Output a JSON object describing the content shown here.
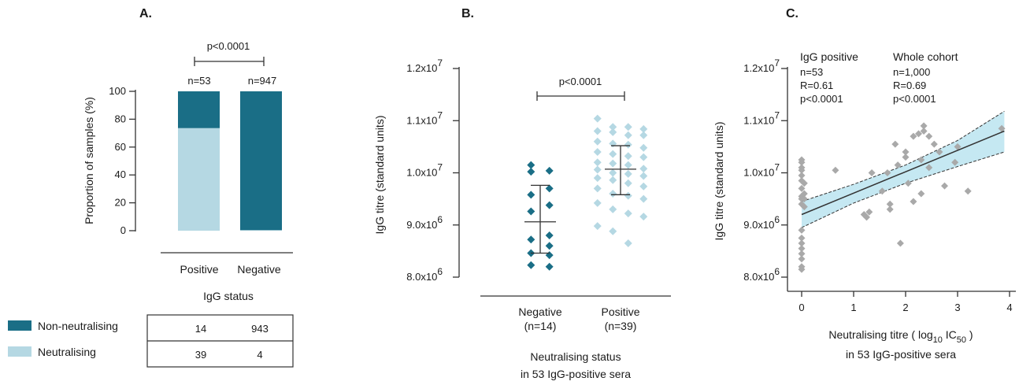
{
  "colors": {
    "non_neutralising": "#1a6e86",
    "neutralising": "#b5d8e3",
    "band": "#c5e8f2",
    "scatter_gray": "#a9a9a9",
    "line": "#333333"
  },
  "panelA": {
    "letter": "A.",
    "pvalue": "p<0.0001",
    "n_positive": "n=53",
    "n_negative": "n=947",
    "legend_non": "Non-neutralising",
    "legend_neu": "Neutralising",
    "table": [
      [
        "14",
        "943"
      ],
      [
        "39",
        "4"
      ]
    ]
  },
  "panelB": {
    "letter": "B.",
    "pvalue": "p<0.0001",
    "neg_line1": "Negative",
    "neg_line2": "(n=14)",
    "pos_line1": "Positive",
    "pos_line2": "(n=39)",
    "xtitle1": "Neutralising status",
    "xtitle2": "in 53 IgG-positive sera"
  },
  "panelC": {
    "letter": "C.",
    "igg_title": "IgG positive",
    "igg_n": "n=53",
    "igg_r": "R=0.61",
    "igg_p": "p<0.0001",
    "whole_title": "Whole cohort",
    "whole_n": "n=1,000",
    "whole_r": "R=0.69",
    "whole_p": "p<0.0001",
    "xtitle_pre": "Neutralising titre ( log",
    "xtitle_sub": "10",
    "xtitle_mid": " IC",
    "xtitle_sub2": "50",
    "xtitle_post": " )",
    "xtitle2": "in 53 IgG-positive sera"
  },
  "chart_data": [
    {
      "type": "bar",
      "stacked": true,
      "title": "A.",
      "xlabel": "IgG status",
      "ylabel": "Proportion of samples (%)",
      "ylim": [
        0,
        100
      ],
      "yticks": [
        0,
        20,
        40,
        60,
        80,
        100
      ],
      "categories": [
        "Positive",
        "Negative"
      ],
      "series": [
        {
          "name": "Neutralising",
          "values": [
            73.6,
            0.4
          ]
        },
        {
          "name": "Non-neutralising",
          "values": [
            26.4,
            99.6
          ]
        }
      ]
    },
    {
      "type": "scatter",
      "title": "B.",
      "xlabel": "Neutralising status",
      "ylabel": "IgG titre (standard units)",
      "ylim": [
        8000000,
        12000000
      ],
      "ytick_values": [
        8000000,
        9000000,
        10000000,
        11000000,
        12000000
      ],
      "ytick_labels": [
        "8.0x10",
        "9.0x10",
        "1.0x10",
        "1.1x10",
        "1.2x10"
      ],
      "ytick_exps": [
        "6",
        "6",
        "7",
        "7",
        "7"
      ],
      "categories": [
        "Negative",
        "Positive"
      ],
      "groups": [
        {
          "category": "Negative",
          "mean": 9060000,
          "sd_low": 8460000,
          "sd_high": 9760000,
          "values": [
            10150000,
            10040000,
            10020000,
            9700000,
            9580000,
            9380000,
            9260000,
            8800000,
            8720000,
            8600000,
            8460000,
            8420000,
            8200000,
            8230000
          ]
        },
        {
          "category": "Positive",
          "mean": 10070000,
          "sd_low": 9580000,
          "sd_high": 10520000,
          "values": [
            10880000,
            10880000,
            11040000,
            10840000,
            10800000,
            10780000,
            10720000,
            10720000,
            10600000,
            10560000,
            10540000,
            10480000,
            10400000,
            10360000,
            10320000,
            10300000,
            10200000,
            10180000,
            10150000,
            10080000,
            10060000,
            10000000,
            9980000,
            9940000,
            9900000,
            9860000,
            9800000,
            9740000,
            9700000,
            9600000,
            9560000,
            9500000,
            9420000,
            9300000,
            9220000,
            9160000,
            8980000,
            8880000,
            8650000
          ]
        }
      ]
    },
    {
      "type": "scatter",
      "title": "C.",
      "xlabel": "Neutralising titre ( log 10 IC 50 )",
      "ylabel": "IgG titre (standard units)",
      "xlim": [
        0,
        4
      ],
      "xticks": [
        0,
        1,
        2,
        3,
        4
      ],
      "ylim": [
        8000000,
        12000000
      ],
      "ytick_values": [
        8000000,
        9000000,
        10000000,
        11000000,
        12000000
      ],
      "ytick_labels": [
        "8.0x10",
        "9.0x10",
        "1.0x10",
        "1.1x10",
        "1.2x10"
      ],
      "ytick_exps": [
        "6",
        "6",
        "7",
        "7",
        "7"
      ],
      "fit": {
        "x": [
          0,
          3.9
        ],
        "y": [
          9200000,
          10800000
        ]
      },
      "ci_upper": {
        "x": [
          0,
          1,
          2,
          3,
          3.9
        ],
        "y": [
          9450000,
          9780000,
          10150000,
          10620000,
          11180000
        ]
      },
      "ci_lower": {
        "x": [
          0,
          1,
          2,
          3,
          3.9
        ],
        "y": [
          8950000,
          9420000,
          9800000,
          10120000,
          10400000
        ]
      },
      "points": {
        "x": [
          0,
          0,
          0,
          0,
          0,
          0,
          0,
          0,
          0,
          0,
          0,
          0,
          0,
          0,
          0,
          0,
          0,
          0,
          0.05,
          0.05,
          0.05,
          0.05,
          0.65,
          1.35,
          1.8,
          2.0,
          2.15,
          2.25,
          2.35,
          2.45,
          2.55,
          2.3,
          2.0,
          1.85,
          1.65,
          1.55,
          1.3,
          1.25,
          1.2,
          1.7,
          1.7,
          2.05,
          2.15,
          2.3,
          2.45,
          2.65,
          2.75,
          2.95,
          3.0,
          3.2,
          3.85,
          1.9,
          2.35
        ],
        "y": [
          10100000,
          10050000,
          9950000,
          9850000,
          9700000,
          9550000,
          9500000,
          9400000,
          8900000,
          8750000,
          8650000,
          8550000,
          8450000,
          8350000,
          8200000,
          8150000,
          10250000,
          10200000,
          9800000,
          9600000,
          9500000,
          9350000,
          10050000,
          10000000,
          10550000,
          10400000,
          10700000,
          10750000,
          10800000,
          10700000,
          10550000,
          10250000,
          10300000,
          10150000,
          10000000,
          9650000,
          9250000,
          9150000,
          9200000,
          9400000,
          9300000,
          9800000,
          9450000,
          9600000,
          10100000,
          10400000,
          9750000,
          10200000,
          10500000,
          9650000,
          10850000,
          8650000,
          10900000
        ]
      }
    }
  ]
}
